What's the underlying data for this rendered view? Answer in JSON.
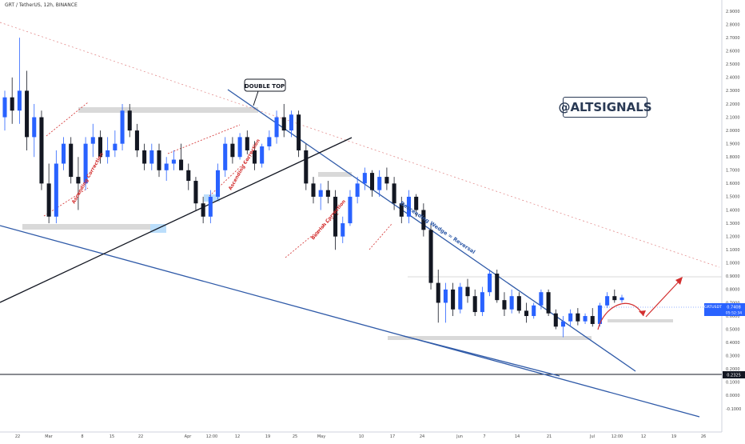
{
  "header": {
    "symbol_title": "GRT / TetherUS, 12h, BINANCE"
  },
  "watermark": "@ALTSIGNALS",
  "colors": {
    "bull": "#2962ff",
    "bear": "#131722",
    "trendline_blue": "#2f5aa8",
    "trendline_black": "#131722",
    "annotation_red": "#d32f2f",
    "zone_grey": "#d6d6d6",
    "zone_blue": "#bbdefb",
    "axis_text": "#4a4a4a",
    "price_tag_bg": "#2962ff"
  },
  "chart_data": {
    "type": "candlestick",
    "title": "GRT / TetherUS, 12h, BINANCE",
    "ylim": [
      -0.15,
      2.95
    ],
    "y_ticks": [
      "2.9000",
      "2.8000",
      "2.7000",
      "2.6000",
      "2.5000",
      "2.4000",
      "2.3000",
      "2.2000",
      "2.1000",
      "2.0000",
      "1.9000",
      "1.8000",
      "1.7000",
      "1.6000",
      "1.5000",
      "1.4000",
      "1.3000",
      "1.2000",
      "1.1000",
      "1.0000",
      "0.9000",
      "0.8000",
      "0.7000",
      "0.6000",
      "0.5000",
      "0.4000",
      "0.3000",
      "0.2000",
      "0.1000",
      "0.0000",
      "-0.1000"
    ],
    "x_ticks": [
      "22",
      "Mar",
      "8",
      "15",
      "22",
      "Apr",
      "12:00",
      "12",
      "19",
      "25",
      "May",
      "10",
      "17",
      "24",
      "Jun",
      "7",
      "14",
      "21",
      "Jul",
      "12:00",
      "12",
      "19",
      "26"
    ],
    "price_labels": {
      "current_symbol": "GRTUSDT",
      "current_price": "0.7408",
      "countdown": "05:52:34",
      "support_level": "0.2325"
    },
    "annotations": {
      "double_top": "DOUBLE TOP",
      "ascending_correction_1": "Ascending Correction",
      "ascending_correction_2": "Ascending Correction",
      "bearish_correction": "Bearish Correction",
      "wedge_label": "Descending Wedge = Reversal"
    },
    "candles": [
      [
        2.1,
        2.3,
        2.0,
        2.25
      ],
      [
        2.25,
        2.4,
        2.05,
        2.15
      ],
      [
        2.15,
        2.7,
        2.05,
        2.3
      ],
      [
        2.3,
        2.45,
        1.85,
        1.95
      ],
      [
        1.95,
        2.2,
        1.8,
        2.1
      ],
      [
        2.1,
        2.15,
        1.55,
        1.6
      ],
      [
        1.6,
        1.75,
        1.3,
        1.35
      ],
      [
        1.35,
        1.85,
        1.3,
        1.75
      ],
      [
        1.75,
        1.95,
        1.7,
        1.9
      ],
      [
        1.9,
        1.95,
        1.6,
        1.65
      ],
      [
        1.65,
        1.8,
        1.4,
        1.6
      ],
      [
        1.6,
        1.95,
        1.55,
        1.9
      ],
      [
        1.9,
        2.05,
        1.8,
        1.95
      ],
      [
        1.95,
        2.0,
        1.75,
        1.8
      ],
      [
        1.8,
        1.95,
        1.75,
        1.85
      ],
      [
        1.85,
        2.0,
        1.8,
        1.9
      ],
      [
        1.9,
        2.2,
        1.85,
        2.15
      ],
      [
        2.15,
        2.2,
        1.95,
        2.0
      ],
      [
        2.0,
        2.05,
        1.8,
        1.85
      ],
      [
        1.85,
        1.9,
        1.7,
        1.75
      ],
      [
        1.75,
        1.9,
        1.7,
        1.85
      ],
      [
        1.85,
        1.9,
        1.65,
        1.7
      ],
      [
        1.7,
        1.8,
        1.62,
        1.75
      ],
      [
        1.75,
        1.85,
        1.7,
        1.78
      ],
      [
        1.78,
        1.9,
        1.72,
        1.7
      ],
      [
        1.7,
        1.75,
        1.55,
        1.62
      ],
      [
        1.62,
        1.65,
        1.4,
        1.45
      ],
      [
        1.45,
        1.5,
        1.3,
        1.35
      ],
      [
        1.35,
        1.55,
        1.3,
        1.5
      ],
      [
        1.5,
        1.75,
        1.48,
        1.7
      ],
      [
        1.7,
        1.95,
        1.65,
        1.9
      ],
      [
        1.9,
        1.95,
        1.75,
        1.8
      ],
      [
        1.8,
        1.98,
        1.78,
        1.95
      ],
      [
        1.95,
        2.0,
        1.82,
        1.85
      ],
      [
        1.85,
        1.92,
        1.7,
        1.75
      ],
      [
        1.75,
        1.9,
        1.72,
        1.88
      ],
      [
        1.88,
        2.0,
        1.85,
        1.95
      ],
      [
        1.95,
        2.15,
        1.9,
        2.1
      ],
      [
        2.1,
        2.2,
        1.95,
        2.0
      ],
      [
        2.0,
        2.15,
        1.95,
        2.12
      ],
      [
        2.12,
        2.15,
        1.8,
        1.85
      ],
      [
        1.85,
        1.9,
        1.55,
        1.6
      ],
      [
        1.6,
        1.65,
        1.45,
        1.5
      ],
      [
        1.5,
        1.6,
        1.4,
        1.55
      ],
      [
        1.55,
        1.62,
        1.45,
        1.5
      ],
      [
        1.5,
        1.55,
        1.1,
        1.2
      ],
      [
        1.2,
        1.35,
        1.15,
        1.3
      ],
      [
        1.3,
        1.55,
        1.28,
        1.5
      ],
      [
        1.5,
        1.65,
        1.45,
        1.6
      ],
      [
        1.6,
        1.72,
        1.55,
        1.68
      ],
      [
        1.68,
        1.7,
        1.5,
        1.55
      ],
      [
        1.55,
        1.7,
        1.5,
        1.65
      ],
      [
        1.65,
        1.72,
        1.55,
        1.6
      ],
      [
        1.6,
        1.65,
        1.4,
        1.45
      ],
      [
        1.45,
        1.5,
        1.3,
        1.35
      ],
      [
        1.35,
        1.55,
        1.3,
        1.5
      ],
      [
        1.5,
        1.52,
        1.35,
        1.4
      ],
      [
        1.4,
        1.45,
        1.2,
        1.25
      ],
      [
        1.25,
        1.3,
        0.8,
        0.85
      ],
      [
        0.85,
        0.95,
        0.55,
        0.7
      ],
      [
        0.7,
        0.85,
        0.55,
        0.8
      ],
      [
        0.8,
        0.85,
        0.6,
        0.65
      ],
      [
        0.65,
        0.85,
        0.62,
        0.82
      ],
      [
        0.82,
        0.88,
        0.7,
        0.75
      ],
      [
        0.75,
        0.8,
        0.6,
        0.63
      ],
      [
        0.63,
        0.82,
        0.6,
        0.78
      ],
      [
        0.78,
        0.95,
        0.75,
        0.92
      ],
      [
        0.92,
        0.95,
        0.7,
        0.72
      ],
      [
        0.72,
        0.78,
        0.6,
        0.65
      ],
      [
        0.65,
        0.8,
        0.62,
        0.75
      ],
      [
        0.75,
        0.78,
        0.62,
        0.64
      ],
      [
        0.64,
        0.7,
        0.55,
        0.6
      ],
      [
        0.6,
        0.7,
        0.58,
        0.68
      ],
      [
        0.68,
        0.8,
        0.65,
        0.78
      ],
      [
        0.78,
        0.8,
        0.6,
        0.62
      ],
      [
        0.62,
        0.65,
        0.5,
        0.52
      ],
      [
        0.52,
        0.6,
        0.44,
        0.56
      ],
      [
        0.56,
        0.65,
        0.52,
        0.62
      ],
      [
        0.62,
        0.66,
        0.53,
        0.56
      ],
      [
        0.56,
        0.62,
        0.54,
        0.6
      ],
      [
        0.6,
        0.66,
        0.52,
        0.54
      ],
      [
        0.54,
        0.7,
        0.52,
        0.68
      ],
      [
        0.68,
        0.78,
        0.66,
        0.75
      ],
      [
        0.75,
        0.8,
        0.7,
        0.72
      ],
      [
        0.72,
        0.76,
        0.7,
        0.74
      ]
    ],
    "horizontal_levels": [
      {
        "price": 0.2325,
        "style": "solid-black"
      },
      {
        "price": 0.95,
        "style": "light-grey"
      },
      {
        "price": 0.7408,
        "style": "current-price"
      }
    ]
  }
}
